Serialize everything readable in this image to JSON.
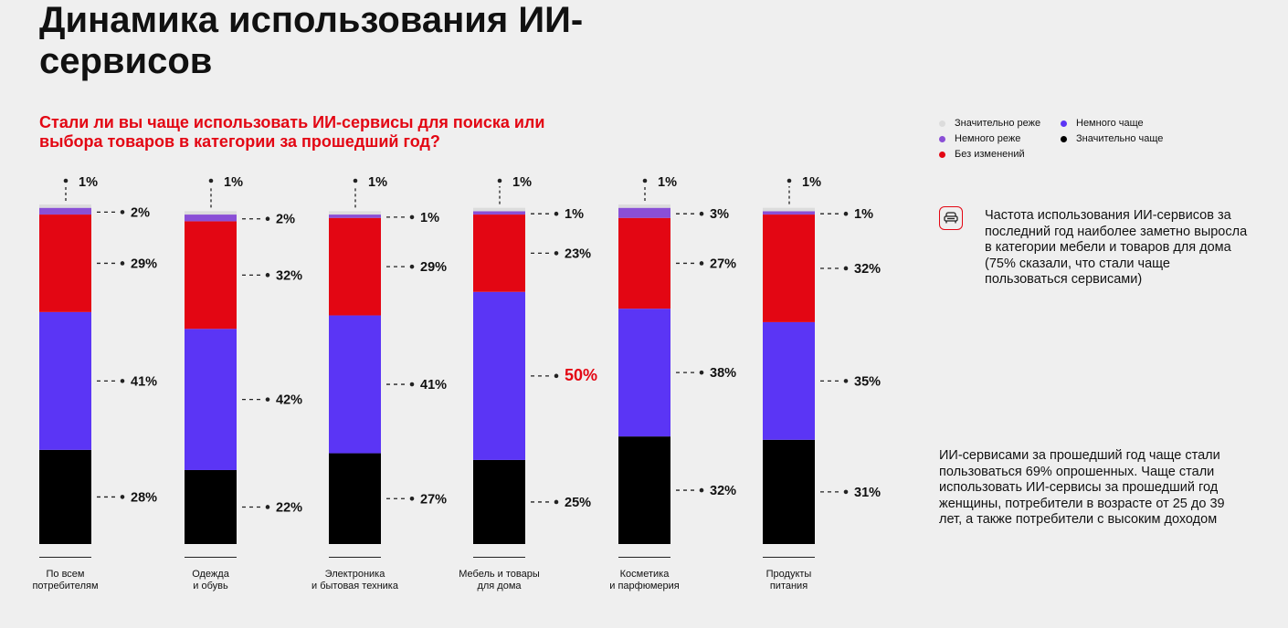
{
  "title": "Динамика использования ИИ-сервисов",
  "subtitle": "Стали ли вы чаще использовать ИИ-сервисы для поиска или выбора товаров в категории за прошедший год?",
  "legend": [
    {
      "label": "Значительно реже",
      "color": "#dcdcdc"
    },
    {
      "label": "Немного чаще",
      "color": "#5b35f5"
    },
    {
      "label": "Немного реже",
      "color": "#8a4fd6"
    },
    {
      "label": "Значительно чаще",
      "color": "#000000"
    },
    {
      "label": "Без изменений",
      "color": "#e30613"
    }
  ],
  "info": {
    "icon": "sofa-icon",
    "text": "Частота использования ИИ-сервисов за последний год наиболее заметно выросла в категории мебели и товаров для дома (75% сказали, что стали чаще пользоваться сервисами)"
  },
  "note": "ИИ-сервисами за прошедший год чаще стали пользоваться 69% опрошенных. Чаще стали использовать ИИ-сервисы за прошедший год женщины, потребители в возрасте от 25 до 39 лет, а также потребители с высоким доходом",
  "chart_data": {
    "type": "bar",
    "stacked": true,
    "categories": [
      "По всем\nпотребителям",
      "Одежда\nи обувь",
      "Электроника\nи бытовая техника",
      "Мебель и товары\nдля дома",
      "Косметика\nи парфюмерия",
      "Продукты\nпитания"
    ],
    "series": [
      {
        "name": "Значительно чаще",
        "color": "#000000",
        "values": [
          28,
          22,
          27,
          25,
          32,
          31
        ]
      },
      {
        "name": "Немного чаще",
        "color": "#5b35f5",
        "values": [
          41,
          42,
          41,
          50,
          38,
          35
        ]
      },
      {
        "name": "Без изменений",
        "color": "#e30613",
        "values": [
          29,
          32,
          29,
          23,
          27,
          32
        ]
      },
      {
        "name": "Немного реже",
        "color": "#8a4fd6",
        "values": [
          2,
          2,
          1,
          1,
          3,
          1
        ]
      },
      {
        "name": "Значительно реже",
        "color": "#dcdcdc",
        "values": [
          1,
          1,
          1,
          1,
          1,
          1
        ]
      }
    ],
    "value_labels": [
      [
        "28%",
        "41%",
        "29%",
        "2%",
        "1%"
      ],
      [
        "22%",
        "42%",
        "32%",
        "2%",
        "1%"
      ],
      [
        "27%",
        "41%",
        "29%",
        "1%",
        "1%"
      ],
      [
        "25%",
        "50%",
        "23%",
        "1%",
        "1%"
      ],
      [
        "32%",
        "38%",
        "27%",
        "3%",
        "1%"
      ],
      [
        "31%",
        "35%",
        "32%",
        "1%",
        "1%"
      ]
    ],
    "highlight": {
      "category_index": 3,
      "series_index": 1,
      "color": "#e30613"
    },
    "ylim": [
      0,
      101
    ]
  }
}
